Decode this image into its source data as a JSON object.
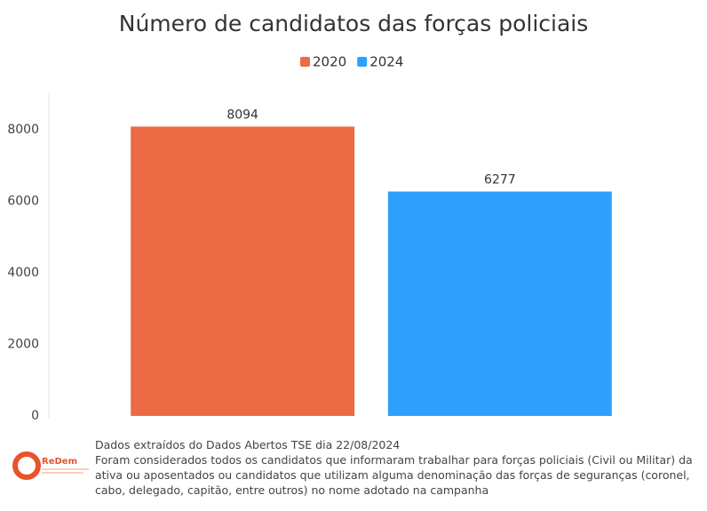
{
  "chart_data": {
    "type": "bar",
    "title": "Número de candidatos das forças policiais",
    "categories": [
      null
    ],
    "series": [
      {
        "name": "2020",
        "color": "#ec6a44",
        "values": [
          8094
        ]
      },
      {
        "name": "2024",
        "color": "#2f9ffc",
        "values": [
          6277
        ]
      }
    ],
    "ylim": [
      0,
      9000
    ],
    "yticks": [
      0,
      2000,
      4000,
      6000,
      8000
    ],
    "grid": false,
    "legend": "top"
  },
  "footer": {
    "logo": "ReDem",
    "source": "Dados extraídos do Dados Abertos TSE dia 22/08/2024",
    "note": "Foram considerados todos os candidatos que informaram trabalhar para forças policiais (Civil ou Militar) da ativa ou aposentados ou candidatos que utilizam alguma denominação das forças de seguranças (coronel, cabo, delegado, capitão, entre outros) no nome adotado na campanha"
  }
}
